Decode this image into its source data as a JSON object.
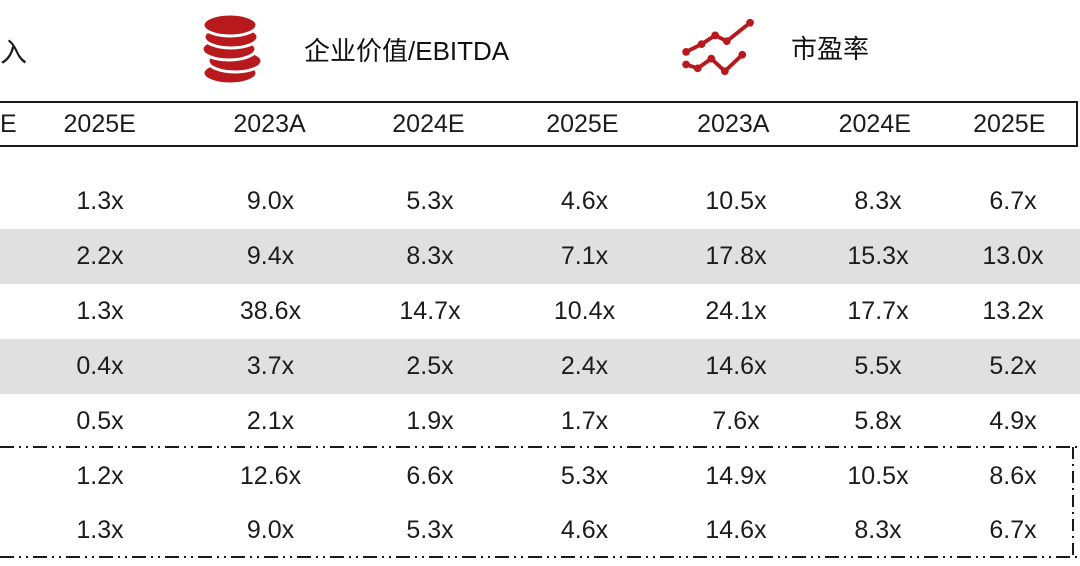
{
  "colors": {
    "accent_red": "#b8191d",
    "shaded_row": "#e0e0e0",
    "text": "#1c1c1c"
  },
  "legend": {
    "partial_left_label": "入",
    "items": [
      {
        "icon": "coin-stack-icon",
        "label": "企业价值/EBITDA"
      },
      {
        "icon": "line-chart-icon",
        "label": "市盈率"
      }
    ]
  },
  "table": {
    "header": [
      "E",
      "2025E",
      "2023A",
      "2024E",
      "2025E",
      "2023A",
      "2024E",
      "2025E"
    ],
    "rows": [
      {
        "shaded": false,
        "cells": [
          "",
          "1.3x",
          "9.0x",
          "5.3x",
          "4.6x",
          "10.5x",
          "8.3x",
          "6.7x"
        ]
      },
      {
        "shaded": true,
        "cells": [
          "",
          "2.2x",
          "9.4x",
          "8.3x",
          "7.1x",
          "17.8x",
          "15.3x",
          "13.0x"
        ]
      },
      {
        "shaded": false,
        "cells": [
          "",
          "1.3x",
          "38.6x",
          "14.7x",
          "10.4x",
          "24.1x",
          "17.7x",
          "13.2x"
        ]
      },
      {
        "shaded": true,
        "cells": [
          "",
          "0.4x",
          "3.7x",
          "2.5x",
          "2.4x",
          "14.6x",
          "5.5x",
          "5.2x"
        ]
      },
      {
        "shaded": false,
        "cells": [
          "",
          "0.5x",
          "2.1x",
          "1.9x",
          "1.7x",
          "7.6x",
          "5.8x",
          "4.9x"
        ]
      }
    ],
    "summary_rows": [
      {
        "cells": [
          "",
          "1.2x",
          "12.6x",
          "6.6x",
          "5.3x",
          "14.9x",
          "10.5x",
          "8.6x"
        ]
      },
      {
        "cells": [
          "",
          "1.3x",
          "9.0x",
          "5.3x",
          "4.6x",
          "14.6x",
          "8.3x",
          "6.7x"
        ]
      }
    ]
  }
}
